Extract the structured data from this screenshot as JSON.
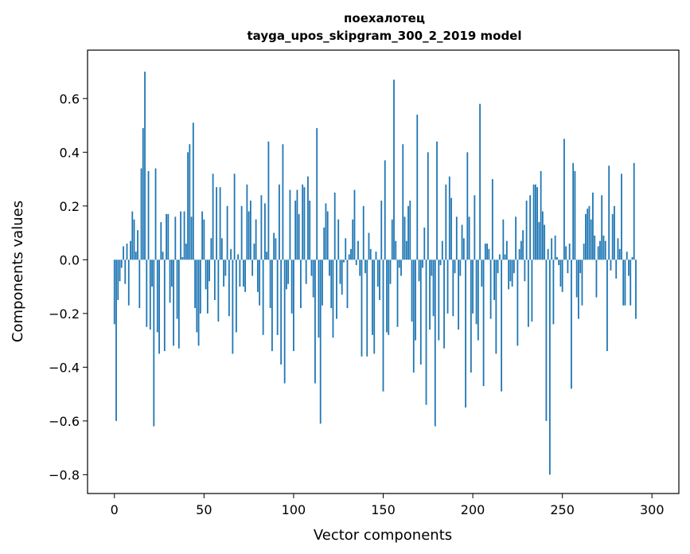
{
  "chart_data": {
    "type": "bar",
    "title": "поехалотец",
    "subtitle": "tayga_upos_skipgram_300_2_2019 model",
    "xlabel": "Vector components",
    "ylabel": "Components values",
    "xlim": [
      -15,
      315
    ],
    "ylim": [
      -0.87,
      0.78
    ],
    "xticks": [
      0,
      50,
      100,
      150,
      200,
      250,
      300
    ],
    "yticks": [
      -0.8,
      -0.6,
      -0.4,
      -0.2,
      0.0,
      0.2,
      0.4,
      0.6
    ],
    "ytick_labels": [
      "−0.8",
      "−0.6",
      "−0.4",
      "−0.2",
      "0.0",
      "0.2",
      "0.4",
      "0.6"
    ],
    "grid": false,
    "bar_color": "#1f77b4",
    "values": [
      -0.24,
      -0.6,
      -0.15,
      -0.08,
      -0.03,
      0.05,
      -0.09,
      0.06,
      -0.17,
      0.07,
      0.18,
      0.15,
      0.03,
      0.11,
      -0.18,
      0.34,
      0.49,
      0.7,
      -0.25,
      0.33,
      -0.26,
      -0.1,
      -0.62,
      0.34,
      -0.27,
      -0.35,
      0.14,
      0.03,
      -0.34,
      0.17,
      0.17,
      -0.16,
      -0.1,
      -0.32,
      0.16,
      -0.22,
      -0.33,
      0.18,
      0.01,
      0.18,
      0.06,
      0.4,
      0.43,
      0.16,
      0.51,
      -0.18,
      -0.27,
      -0.32,
      -0.2,
      0.18,
      0.15,
      -0.11,
      -0.2,
      -0.08,
      0.08,
      0.32,
      -0.15,
      0.27,
      -0.23,
      0.27,
      0.08,
      -0.1,
      -0.06,
      0.2,
      -0.21,
      0.04,
      -0.35,
      0.32,
      -0.27,
      0.02,
      -0.1,
      0.2,
      -0.1,
      -0.12,
      0.28,
      0.18,
      0.22,
      -0.06,
      0.06,
      0.15,
      -0.12,
      -0.17,
      0.24,
      -0.28,
      0.21,
      0.03,
      0.44,
      -0.18,
      -0.34,
      0.1,
      0.08,
      -0.28,
      0.28,
      -0.39,
      0.43,
      -0.46,
      -0.11,
      -0.09,
      0.26,
      -0.2,
      -0.34,
      0.22,
      0.26,
      0.17,
      -0.18,
      0.28,
      0.27,
      -0.09,
      0.31,
      0.22,
      -0.06,
      -0.14,
      -0.46,
      0.49,
      -0.29,
      -0.61,
      -0.17,
      0.12,
      0.21,
      0.18,
      -0.06,
      -0.18,
      -0.29,
      0.25,
      -0.22,
      0.15,
      -0.09,
      -0.13,
      -0.01,
      0.08,
      -0.18,
      0.02,
      0.04,
      0.15,
      0.26,
      -0.02,
      0.07,
      -0.06,
      -0.36,
      0.2,
      -0.05,
      -0.36,
      0.1,
      0.04,
      -0.28,
      -0.35,
      0.03,
      -0.1,
      -0.15,
      0.22,
      -0.49,
      0.37,
      -0.27,
      -0.28,
      -0.09,
      0.15,
      0.67,
      0.07,
      -0.25,
      -0.03,
      -0.06,
      0.43,
      0.16,
      0.07,
      0.2,
      0.22,
      -0.23,
      -0.42,
      -0.3,
      0.54,
      -0.08,
      -0.39,
      -0.03,
      0.12,
      -0.54,
      0.4,
      -0.26,
      -0.06,
      -0.21,
      -0.62,
      0.44,
      -0.3,
      -0.02,
      0.07,
      -0.33,
      0.28,
      -0.2,
      0.31,
      0.23,
      -0.21,
      -0.05,
      0.16,
      -0.26,
      -0.06,
      0.13,
      0.08,
      -0.55,
      0.4,
      0.16,
      -0.42,
      -0.2,
      0.24,
      -0.24,
      -0.3,
      0.58,
      -0.1,
      -0.47,
      0.06,
      0.06,
      0.04,
      -0.22,
      0.3,
      -0.15,
      -0.35,
      -0.05,
      0.02,
      -0.49,
      0.15,
      0.02,
      0.07,
      -0.11,
      -0.08,
      -0.1,
      -0.05,
      0.16,
      -0.32,
      0.04,
      0.07,
      0.11,
      -0.08,
      0.22,
      -0.25,
      0.24,
      -0.23,
      0.28,
      0.28,
      0.27,
      0.14,
      0.33,
      0.18,
      0.13,
      -0.6,
      0.04,
      -0.8,
      0.08,
      -0.24,
      0.09,
      0.01,
      -0.02,
      -0.1,
      -0.12,
      0.45,
      0.05,
      -0.05,
      0.06,
      -0.48,
      0.36,
      0.33,
      -0.14,
      -0.22,
      -0.05,
      -0.17,
      0.06,
      0.17,
      0.19,
      0.2,
      0.15,
      0.25,
      0.09,
      -0.14,
      0.05,
      0.07,
      0.24,
      0.09,
      0.07,
      -0.34,
      0.35,
      -0.04,
      0.17,
      0.2,
      -0.07,
      0.08,
      0.04,
      0.32,
      -0.17,
      -0.17,
      0.03,
      -0.06,
      -0.17,
      0.01,
      0.36,
      -0.22
    ]
  }
}
